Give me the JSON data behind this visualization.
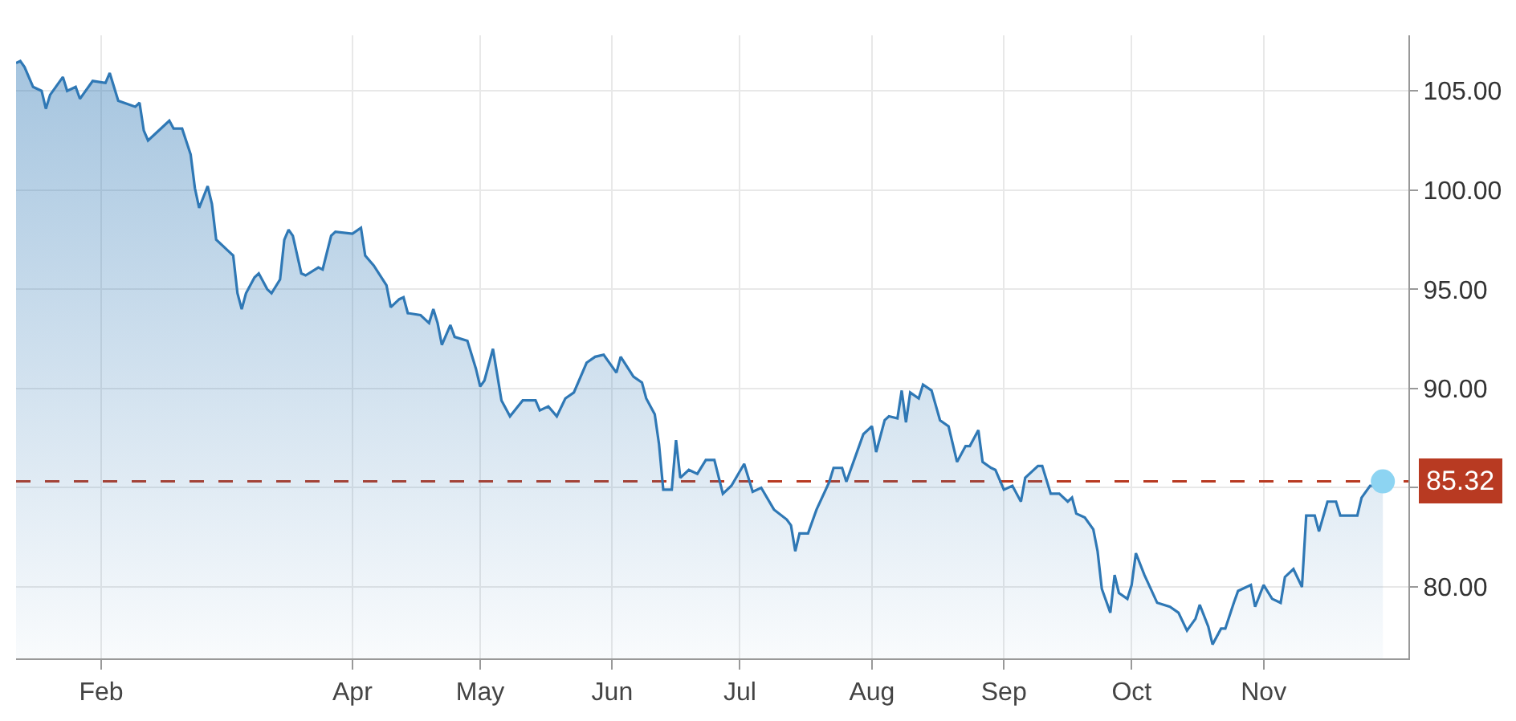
{
  "chart_data": {
    "type": "area",
    "x": [
      "--01-12",
      "--01-13",
      "--01-14",
      "--01-16",
      "--01-18",
      "--01-19",
      "--01-20",
      "--01-23",
      "--01-24",
      "--01-26",
      "--01-27",
      "--01-30",
      "--02-02",
      "--02-03",
      "--02-05",
      "--02-09",
      "--02-10",
      "--02-11",
      "--02-12",
      "--02-16",
      "--02-17",
      "--02-18",
      "--02-20",
      "--02-22",
      "--02-23",
      "--02-24",
      "--02-26",
      "--02-27",
      "--02-28",
      "--03-03",
      "--03-04",
      "--03-05",
      "--03-06",
      "--03-07",
      "--03-09",
      "--03-10",
      "--03-12",
      "--03-13",
      "--03-15",
      "--03-16",
      "--03-17",
      "--03-18",
      "--03-20",
      "--03-21",
      "--03-24",
      "--03-25",
      "--03-27",
      "--03-28",
      "--04-01",
      "--04-03",
      "--04-04",
      "--04-06",
      "--04-09",
      "--04-10",
      "--04-12",
      "--04-13",
      "--04-14",
      "--04-17",
      "--04-19",
      "--04-20",
      "--04-21",
      "--04-22",
      "--04-24",
      "--04-25",
      "--04-28",
      "--04-30",
      "--05-01",
      "--05-02",
      "--05-04",
      "--05-05",
      "--05-06",
      "--05-08",
      "--05-11",
      "--05-14",
      "--05-15",
      "--05-17",
      "--05-19",
      "--05-21",
      "--05-23",
      "--05-26",
      "--05-28",
      "--05-30",
      "--06-02",
      "--06-03",
      "--06-06",
      "--06-08",
      "--06-09",
      "--06-11",
      "--06-12",
      "--06-13",
      "--06-15",
      "--06-16",
      "--06-17",
      "--06-19",
      "--06-21",
      "--06-23",
      "--06-25",
      "--06-27",
      "--06-29",
      "--07-02",
      "--07-04",
      "--07-06",
      "--07-09",
      "--07-12",
      "--07-13",
      "--07-14",
      "--07-15",
      "--07-17",
      "--07-19",
      "--07-22",
      "--07-23",
      "--07-25",
      "--07-26",
      "--07-28",
      "--07-30",
      "--08-01",
      "--08-02",
      "--08-04",
      "--08-05",
      "--08-07",
      "--08-08",
      "--08-09",
      "--08-10",
      "--08-12",
      "--08-13",
      "--08-15",
      "--08-17",
      "--08-19",
      "--08-21",
      "--08-23",
      "--08-24",
      "--08-26",
      "--08-27",
      "--08-29",
      "--08-30",
      "--09-01",
      "--09-03",
      "--09-05",
      "--09-06",
      "--09-09",
      "--09-10",
      "--09-12",
      "--09-14",
      "--09-16",
      "--09-17",
      "--09-18",
      "--09-20",
      "--09-22",
      "--09-23",
      "--09-24",
      "--09-26",
      "--09-27",
      "--09-28",
      "--09-30",
      "--10-01",
      "--10-02",
      "--10-04",
      "--10-07",
      "--10-10",
      "--10-12",
      "--10-14",
      "--10-16",
      "--10-17",
      "--10-19",
      "--10-20",
      "--10-22",
      "--10-23",
      "--10-25",
      "--10-26",
      "--10-29",
      "--10-30",
      "--11-01",
      "--11-03",
      "--11-05",
      "--11-06",
      "--11-08",
      "--11-10",
      "--11-11",
      "--11-13",
      "--11-14",
      "--11-16",
      "--11-18",
      "--11-19",
      "--11-23",
      "--11-24",
      "--11-26",
      "--11-28",
      "--11-29"
    ],
    "series": [
      {
        "color": "#2f78b5",
        "values": [
          106.4,
          106.5,
          106.2,
          105.2,
          105.0,
          104.1,
          104.8,
          105.7,
          105.0,
          105.2,
          104.6,
          105.5,
          105.4,
          105.9,
          104.5,
          104.2,
          104.4,
          103.0,
          102.5,
          103.3,
          103.5,
          103.1,
          103.1,
          101.8,
          100.1,
          99.1,
          100.2,
          99.3,
          97.5,
          96.9,
          96.7,
          94.8,
          94.0,
          94.8,
          95.6,
          95.8,
          95.0,
          94.8,
          95.5,
          97.5,
          98.0,
          97.7,
          95.8,
          95.7,
          96.1,
          96.0,
          97.7,
          97.9,
          97.8,
          98.1,
          96.7,
          96.2,
          95.2,
          94.1,
          94.5,
          94.6,
          93.8,
          93.7,
          93.3,
          94.0,
          93.3,
          92.2,
          93.2,
          92.6,
          92.4,
          91.0,
          90.1,
          90.4,
          92.0,
          90.7,
          89.4,
          88.6,
          89.4,
          89.4,
          88.9,
          89.1,
          88.6,
          89.5,
          89.8,
          91.3,
          91.6,
          91.7,
          90.8,
          91.6,
          90.6,
          90.3,
          89.5,
          88.7,
          87.2,
          84.9,
          84.9,
          87.4,
          85.5,
          85.9,
          85.7,
          86.4,
          86.4,
          84.7,
          85.1,
          86.2,
          84.8,
          85.0,
          83.9,
          83.4,
          83.1,
          81.8,
          82.7,
          82.7,
          83.9,
          85.3,
          86.0,
          86.0,
          85.3,
          86.5,
          87.7,
          88.1,
          86.8,
          88.4,
          88.6,
          88.5,
          89.9,
          88.3,
          89.8,
          89.5,
          90.2,
          89.9,
          88.4,
          88.1,
          86.3,
          87.1,
          87.1,
          87.9,
          86.3,
          86.0,
          85.9,
          84.9,
          85.1,
          84.3,
          85.5,
          86.1,
          86.1,
          84.7,
          84.7,
          84.3,
          84.5,
          83.7,
          83.5,
          82.9,
          81.8,
          79.9,
          78.7,
          80.6,
          79.7,
          79.4,
          80.1,
          81.7,
          80.6,
          79.2,
          79.0,
          78.7,
          77.8,
          78.4,
          79.1,
          78.0,
          77.1,
          77.9,
          77.9,
          79.2,
          79.8,
          80.1,
          79.0,
          80.1,
          79.4,
          79.2,
          80.5,
          80.9,
          80.0,
          83.6,
          83.6,
          82.8,
          84.3,
          84.3,
          83.6,
          83.6,
          84.5,
          85.1,
          85.1,
          85.32
        ]
      },
      {
        "type": "scatter",
        "color": "#8dd4f2",
        "marker": "circle",
        "x": [
          "--11-29"
        ],
        "values": [
          85.32
        ]
      }
    ],
    "xlim": [
      "--01-12",
      "--12-05"
    ],
    "xticks": [
      {
        "value": "--02-01",
        "label": "Feb"
      },
      {
        "value": "--04-01",
        "label": "Apr"
      },
      {
        "value": "--05-01",
        "label": "May"
      },
      {
        "value": "--06-01",
        "label": "Jun"
      },
      {
        "value": "--07-01",
        "label": "Jul"
      },
      {
        "value": "--08-01",
        "label": "Aug"
      },
      {
        "value": "--09-01",
        "label": "Sep"
      },
      {
        "value": "--10-01",
        "label": "Oct"
      },
      {
        "value": "--11-01",
        "label": "Nov"
      }
    ],
    "ylim": [
      76.4,
      107.8
    ],
    "yticks": [
      {
        "value": 80,
        "label": "80.00"
      },
      {
        "value": 85,
        "label": null
      },
      {
        "value": 90,
        "label": "90.00"
      },
      {
        "value": 95,
        "label": "95.00"
      },
      {
        "value": 100,
        "label": "100.00"
      },
      {
        "value": 105,
        "label": "105.00"
      }
    ],
    "ref_lines": [
      {
        "axis": "y",
        "value": 85.32,
        "label": "85.32",
        "color": "#b83a22",
        "line_style": "dashed"
      }
    ],
    "grid": true
  }
}
